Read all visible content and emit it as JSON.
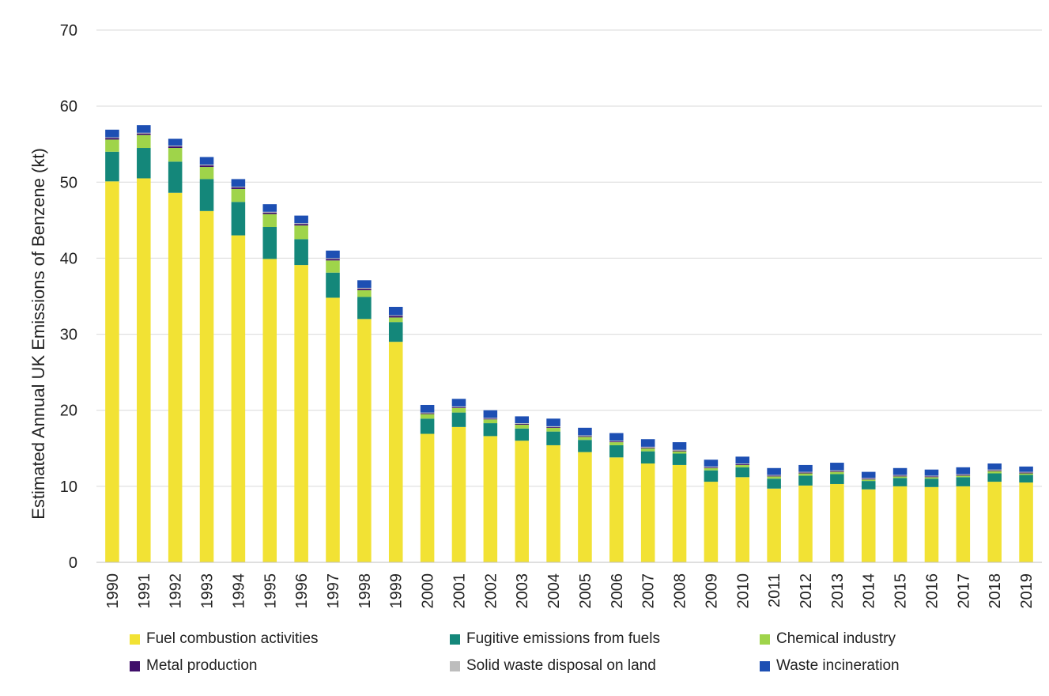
{
  "chart_data": {
    "type": "bar",
    "stacked": true,
    "title": "",
    "xlabel": "",
    "ylabel": "Estimated Annual UK Emissions of Benzene (kt)",
    "ylim": [
      0,
      70
    ],
    "yticks": [
      0,
      10,
      20,
      30,
      40,
      50,
      60,
      70
    ],
    "grid": true,
    "legend_position": "bottom",
    "categories": [
      "1990",
      "1991",
      "1992",
      "1993",
      "1994",
      "1995",
      "1996",
      "1997",
      "1998",
      "1999",
      "2000",
      "2001",
      "2002",
      "2003",
      "2004",
      "2005",
      "2006",
      "2007",
      "2008",
      "2009",
      "2010",
      "2011",
      "2012",
      "2013",
      "2014",
      "2015",
      "2016",
      "2017",
      "2018",
      "2019"
    ],
    "series": [
      {
        "name": "Fuel combustion activities",
        "color": "#f2e234",
        "values": [
          50.1,
          50.5,
          48.6,
          46.2,
          43.0,
          39.9,
          39.1,
          34.8,
          32.0,
          29.0,
          16.9,
          17.8,
          16.6,
          16.0,
          15.4,
          14.5,
          13.8,
          13.0,
          12.8,
          10.6,
          11.2,
          9.7,
          10.1,
          10.3,
          9.6,
          10.0,
          9.9,
          10.0,
          10.6,
          10.5
        ]
      },
      {
        "name": "Fugitive emissions from fuels",
        "color": "#14877a",
        "values": [
          3.9,
          4.0,
          4.1,
          4.2,
          4.4,
          4.2,
          3.4,
          3.3,
          2.9,
          2.6,
          2.0,
          1.9,
          1.7,
          1.6,
          1.8,
          1.6,
          1.6,
          1.6,
          1.5,
          1.5,
          1.3,
          1.3,
          1.3,
          1.3,
          1.1,
          1.1,
          1.1,
          1.2,
          1.1,
          1.0
        ]
      },
      {
        "name": "Chemical industry",
        "color": "#9fd44a",
        "values": [
          1.6,
          1.7,
          1.8,
          1.6,
          1.7,
          1.7,
          1.8,
          1.6,
          0.9,
          0.6,
          0.6,
          0.6,
          0.5,
          0.5,
          0.5,
          0.4,
          0.4,
          0.4,
          0.3,
          0.3,
          0.3,
          0.3,
          0.3,
          0.3,
          0.2,
          0.2,
          0.2,
          0.2,
          0.3,
          0.2
        ]
      },
      {
        "name": "Metal production",
        "color": "#3f0f6a",
        "values": [
          0.2,
          0.2,
          0.2,
          0.2,
          0.2,
          0.2,
          0.2,
          0.2,
          0.2,
          0.2,
          0.1,
          0.1,
          0.1,
          0.1,
          0.1,
          0.1,
          0.1,
          0.1,
          0.1,
          0.1,
          0.1,
          0.1,
          0.1,
          0.1,
          0.1,
          0.1,
          0.1,
          0.1,
          0.1,
          0.1
        ]
      },
      {
        "name": "Solid waste disposal on land",
        "color": "#bdbdbd",
        "values": [
          0.1,
          0.1,
          0.1,
          0.1,
          0.1,
          0.1,
          0.1,
          0.1,
          0.1,
          0.1,
          0.1,
          0.1,
          0.1,
          0.1,
          0.1,
          0.1,
          0.1,
          0.1,
          0.1,
          0.1,
          0.1,
          0.1,
          0.1,
          0.1,
          0.1,
          0.1,
          0.1,
          0.1,
          0.1,
          0.1
        ]
      },
      {
        "name": "Waste incineration",
        "color": "#1d4fb3",
        "values": [
          1.0,
          1.0,
          0.9,
          1.0,
          1.0,
          1.0,
          1.0,
          1.0,
          1.0,
          1.1,
          1.0,
          1.0,
          1.0,
          0.9,
          1.0,
          1.0,
          1.0,
          1.0,
          1.0,
          0.9,
          0.9,
          0.9,
          0.9,
          1.0,
          0.8,
          0.9,
          0.8,
          0.9,
          0.8,
          0.7
        ]
      }
    ]
  }
}
